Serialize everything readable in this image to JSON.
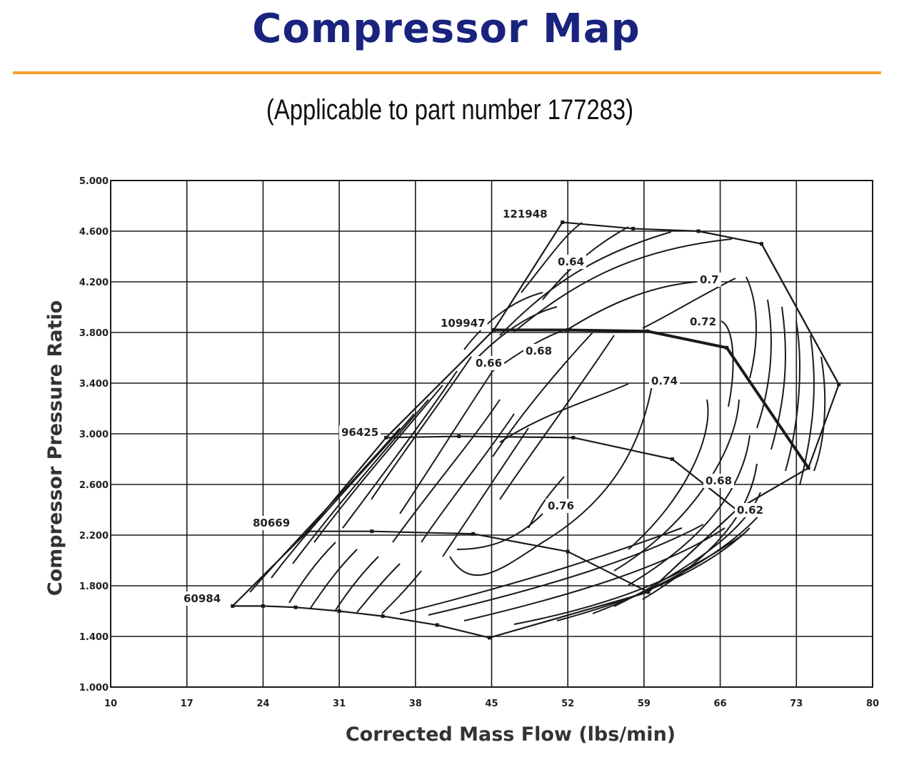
{
  "title": "Compressor Map",
  "subtitle": "(Applicable to part number 177283)",
  "colors": {
    "title": "#1a237e",
    "rule": "#f5a030",
    "ink": "#1a1a1a"
  },
  "chart_data": {
    "type": "line",
    "title": "Compressor Map",
    "subtitle": "(Applicable to part number 177283)",
    "xlabel": "Corrected Mass Flow (lbs/min)",
    "ylabel": "Compressor Pressure Ratio",
    "xlim": [
      10,
      80
    ],
    "ylim": [
      1.0,
      5.0
    ],
    "xticks": [
      "10",
      "17",
      "24",
      "31",
      "38",
      "45",
      "52",
      "59",
      "66",
      "73",
      "80"
    ],
    "yticks": [
      "1.000",
      "1.400",
      "1.800",
      "2.200",
      "2.600",
      "3.000",
      "3.400",
      "3.800",
      "4.200",
      "4.600",
      "5.000"
    ],
    "grid": true,
    "speed_lines": [
      {
        "label": "60984",
        "points": [
          [
            21.2,
            1.64
          ],
          [
            24.0,
            1.64
          ],
          [
            27.0,
            1.63
          ],
          [
            31.0,
            1.6
          ],
          [
            35.0,
            1.56
          ],
          [
            40.0,
            1.49
          ],
          [
            44.8,
            1.39
          ]
        ]
      },
      {
        "label": "80669",
        "points": [
          [
            28.1,
            2.23
          ],
          [
            34.0,
            2.23
          ],
          [
            43.3,
            2.21
          ],
          [
            52.0,
            2.07
          ],
          [
            59.4,
            1.75
          ]
        ]
      },
      {
        "label": "96425",
        "points": [
          [
            35.3,
            2.97
          ],
          [
            42.0,
            2.98
          ],
          [
            52.5,
            2.97
          ],
          [
            61.6,
            2.8
          ],
          [
            67.5,
            2.4
          ]
        ]
      },
      {
        "label": "109947",
        "points": [
          [
            45.2,
            3.82
          ],
          [
            52.0,
            3.82
          ],
          [
            59.3,
            3.81
          ],
          [
            66.6,
            3.68
          ],
          [
            74.1,
            2.73
          ]
        ]
      },
      {
        "label": "121948",
        "points": [
          [
            51.5,
            4.67
          ],
          [
            58.0,
            4.62
          ],
          [
            64.0,
            4.6
          ],
          [
            69.8,
            4.5
          ],
          [
            76.9,
            3.39
          ]
        ]
      }
    ],
    "surge_line": [
      [
        21.2,
        1.64
      ],
      [
        28.1,
        2.23
      ],
      [
        35.3,
        2.97
      ],
      [
        45.2,
        3.82
      ],
      [
        51.5,
        4.67
      ]
    ],
    "choke_line": [
      [
        44.8,
        1.39
      ],
      [
        59.4,
        1.75
      ],
      [
        67.5,
        2.4
      ],
      [
        74.1,
        2.73
      ],
      [
        76.9,
        3.39
      ],
      [
        69.8,
        4.5
      ]
    ],
    "efficiency_labels": [
      "0.64",
      "0.7",
      "0.72",
      "0.66",
      "0.68",
      "0.74",
      "0.76",
      "0.68",
      "0.62"
    ]
  }
}
